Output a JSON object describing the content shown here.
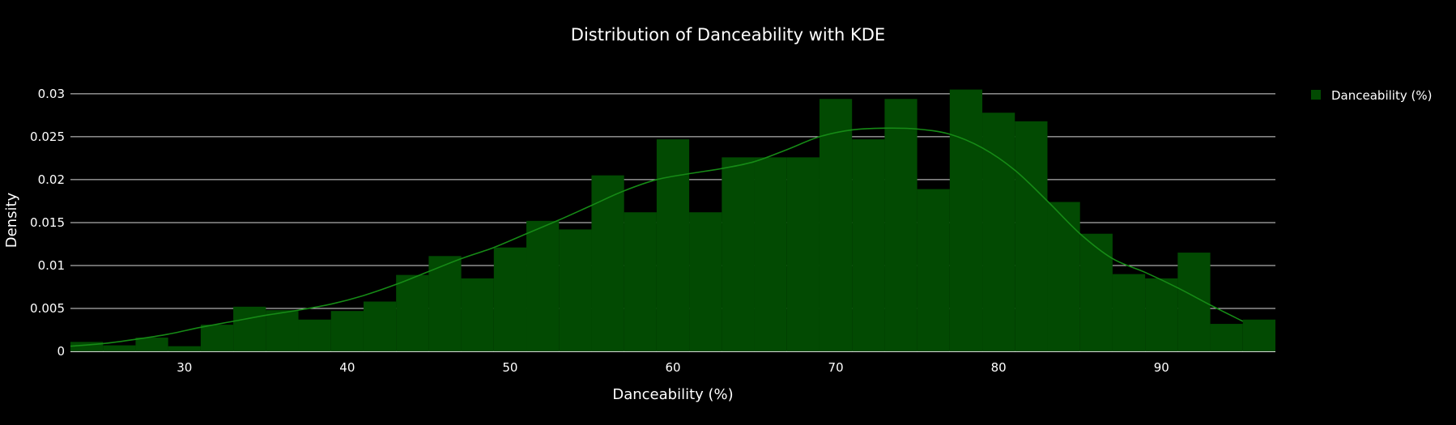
{
  "chart_data": {
    "type": "bar",
    "title": "Distribution of Danceability with KDE",
    "xlabel": "Danceability (%)",
    "ylabel": "Density",
    "xlim": [
      23,
      97
    ],
    "ylim": [
      0,
      0.0315
    ],
    "x_ticks": [
      "30",
      "40",
      "50",
      "60",
      "70",
      "80",
      "90"
    ],
    "x_tick_values": [
      30,
      40,
      50,
      60,
      70,
      80,
      90
    ],
    "y_ticks": [
      "0",
      "0.005",
      "0.01",
      "0.015",
      "0.02",
      "0.025",
      "0.03"
    ],
    "y_tick_values": [
      0,
      0.005,
      0.01,
      0.015,
      0.02,
      0.025,
      0.03
    ],
    "grid": true,
    "legend_position": "top-right",
    "colors": {
      "bar": "#024a02",
      "kde": "#168a16",
      "grid": "#d8d8d8",
      "background": "#000000"
    },
    "series": [
      {
        "name": "Danceability (%)",
        "kind": "histogram",
        "bin_edges": [
          23,
          25,
          27,
          29,
          31,
          33,
          35,
          37,
          39,
          41,
          43,
          45,
          47,
          49,
          51,
          53,
          55,
          57,
          59,
          61,
          63,
          65,
          67,
          69,
          71,
          73,
          75,
          77,
          79,
          81,
          83,
          85,
          87,
          89,
          91,
          93,
          95,
          97
        ],
        "values": [
          0.0011,
          0.0007,
          0.0016,
          0.0006,
          0.0031,
          0.0052,
          0.0048,
          0.0037,
          0.0047,
          0.0058,
          0.0089,
          0.0111,
          0.0085,
          0.0121,
          0.0152,
          0.0142,
          0.0205,
          0.0162,
          0.0247,
          0.0162,
          0.0226,
          0.0226,
          0.0226,
          0.0294,
          0.0247,
          0.0294,
          0.0189,
          0.0305,
          0.0278,
          0.0268,
          0.0174,
          0.0137,
          0.009,
          0.0085,
          0.0115,
          0.0032,
          0.0037
        ]
      },
      {
        "kind": "kde_line",
        "x": [
          23,
          25,
          27,
          29,
          31,
          33,
          35,
          37,
          39,
          41,
          43,
          45,
          47,
          49,
          51,
          53,
          55,
          57,
          59,
          61,
          63,
          65,
          67,
          69,
          71,
          73,
          75,
          77,
          79,
          81,
          83,
          85,
          87,
          89,
          91,
          93,
          95
        ],
        "values": [
          0.0006,
          0.0009,
          0.0014,
          0.002,
          0.0028,
          0.0035,
          0.0042,
          0.0048,
          0.0055,
          0.0065,
          0.0078,
          0.0093,
          0.0108,
          0.0121,
          0.0137,
          0.0153,
          0.017,
          0.0187,
          0.02,
          0.0207,
          0.0213,
          0.0221,
          0.0235,
          0.025,
          0.0258,
          0.026,
          0.0259,
          0.0253,
          0.0237,
          0.0211,
          0.0175,
          0.0137,
          0.0108,
          0.0092,
          0.0074,
          0.0054,
          0.0035
        ]
      }
    ]
  }
}
